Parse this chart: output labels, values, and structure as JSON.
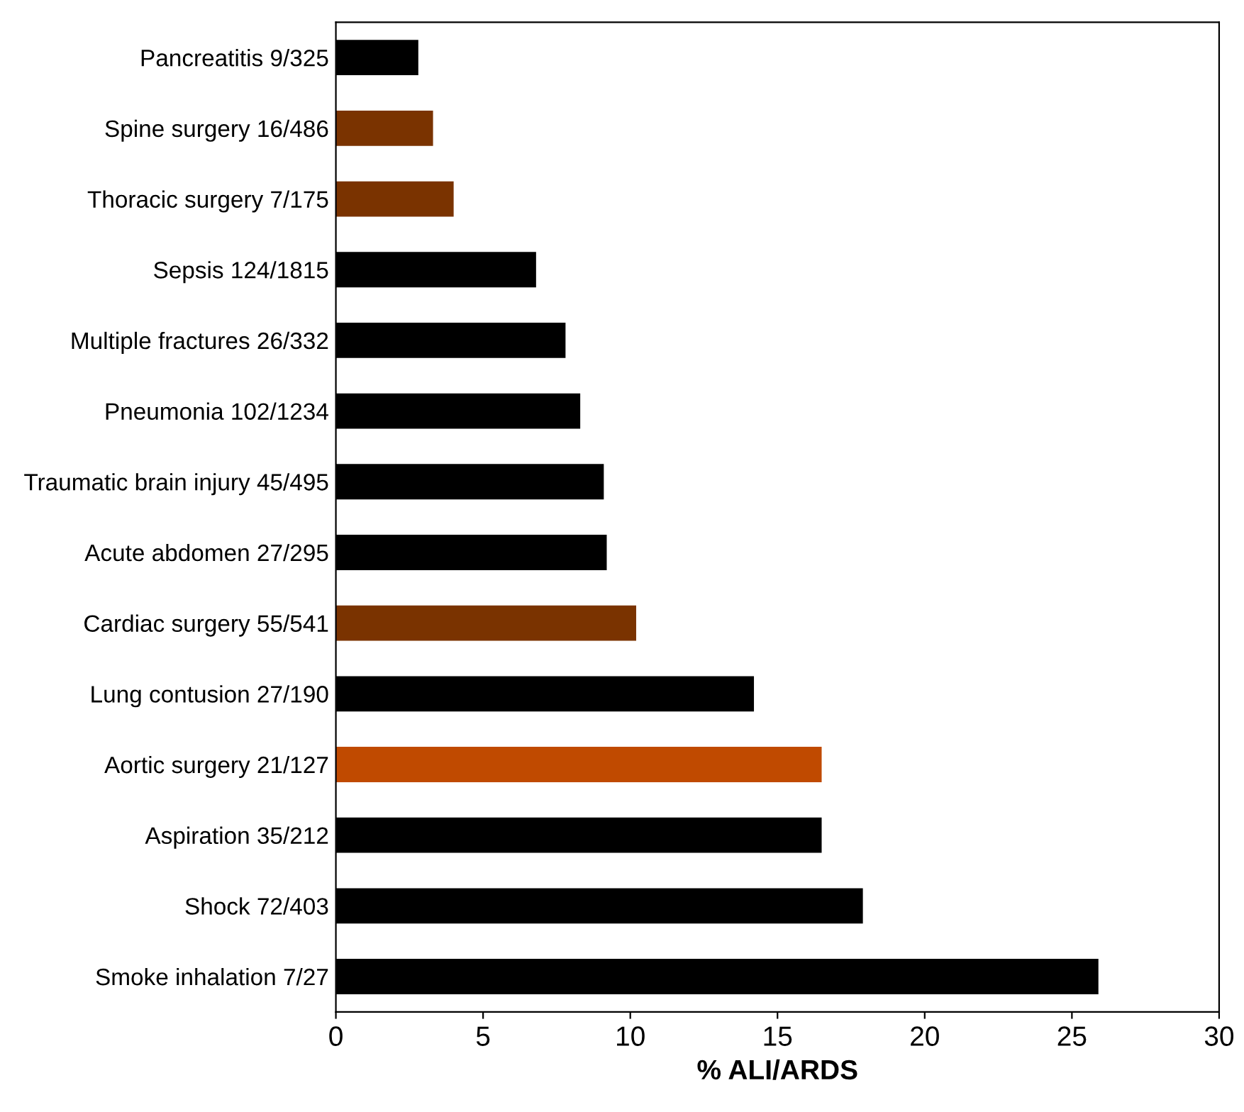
{
  "chart_data": {
    "type": "bar",
    "orientation": "horizontal",
    "xlabel": "% ALI/ARDS",
    "categories": [
      "Pancreatitis 9/325",
      "Spine surgery 16/486",
      "Thoracic surgery 7/175",
      "Sepsis 124/1815",
      "Multiple fractures 26/332",
      "Pneumonia 102/1234",
      "Traumatic brain injury 45/495",
      "Acute abdomen 27/295",
      "Cardiac surgery 55/541",
      "Lung contusion 27/190",
      "Aortic surgery 21/127",
      "Aspiration 35/212",
      "Shock 72/403",
      "Smoke inhalation 7/27"
    ],
    "values": [
      2.8,
      3.3,
      4.0,
      6.8,
      7.8,
      8.3,
      9.1,
      9.2,
      10.2,
      14.2,
      16.5,
      16.5,
      17.9,
      25.9
    ],
    "colors": [
      "#000000",
      "#7a3300",
      "#7a3300",
      "#000000",
      "#000000",
      "#000000",
      "#000000",
      "#000000",
      "#7a3300",
      "#000000",
      "#c04a00",
      "#000000",
      "#000000",
      "#000000"
    ],
    "xlim": [
      0,
      30
    ],
    "xticks": [
      0,
      5,
      10,
      15,
      20,
      25,
      30
    ],
    "grid": false
  }
}
